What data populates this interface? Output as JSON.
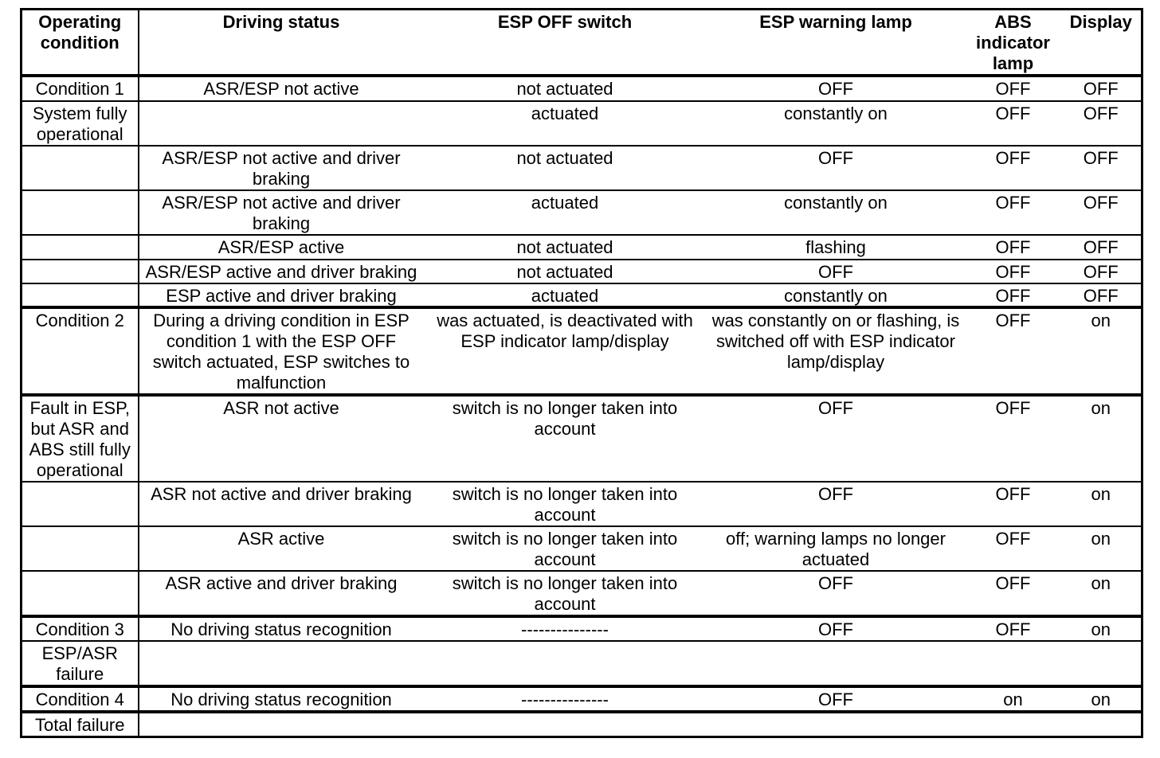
{
  "colors": {
    "border": "#000000",
    "background": "#ffffff",
    "text": "#000000"
  },
  "table": {
    "columns": {
      "operating_condition": "Operating condition",
      "driving_status": "Driving status",
      "esp_off_switch": "ESP OFF switch",
      "esp_warning_lamp": "ESP warning lamp",
      "abs_indicator_lamp": "ABS indicator lamp",
      "display": "Display"
    },
    "rows": [
      {
        "operating_condition": "Condition 1",
        "driving_status": "ASR/ESP not active",
        "esp_off_switch": "not actuated",
        "esp_warning_lamp": "OFF",
        "abs_indicator_lamp": "OFF",
        "display": "OFF"
      },
      {
        "operating_condition": "System fully operational",
        "driving_status": "",
        "esp_off_switch": "actuated",
        "esp_warning_lamp": "constantly on",
        "abs_indicator_lamp": "OFF",
        "display": "OFF"
      },
      {
        "operating_condition": "",
        "driving_status": "ASR/ESP not active and driver braking",
        "esp_off_switch": "not actuated",
        "esp_warning_lamp": "OFF",
        "abs_indicator_lamp": "OFF",
        "display": "OFF"
      },
      {
        "operating_condition": "",
        "driving_status": "ASR/ESP not active and driver braking",
        "esp_off_switch": "actuated",
        "esp_warning_lamp": "constantly on",
        "abs_indicator_lamp": "OFF",
        "display": "OFF"
      },
      {
        "operating_condition": "",
        "driving_status": "ASR/ESP active",
        "esp_off_switch": "not actuated",
        "esp_warning_lamp": "flashing",
        "abs_indicator_lamp": "OFF",
        "display": "OFF"
      },
      {
        "operating_condition": "",
        "driving_status": "ASR/ESP active and driver braking",
        "esp_off_switch": "not actuated",
        "esp_warning_lamp": "OFF",
        "abs_indicator_lamp": "OFF",
        "display": "OFF"
      },
      {
        "operating_condition": "",
        "driving_status": "ESP active and driver braking",
        "esp_off_switch": "actuated",
        "esp_warning_lamp": "constantly on",
        "abs_indicator_lamp": "OFF",
        "display": "OFF"
      },
      {
        "operating_condition": "Condition 2",
        "driving_status": "During a driving condition in ESP condition 1 with the ESP OFF switch actuated, ESP switches to malfunction",
        "esp_off_switch": "was actuated, is deactivated with ESP indicator lamp/display",
        "esp_warning_lamp": "was constantly on or flashing, is switched off with ESP indicator lamp/display",
        "abs_indicator_lamp": "OFF",
        "display": "on"
      },
      {
        "operating_condition": "Fault in ESP, but ASR and ABS still fully operational",
        "driving_status": "ASR not active",
        "esp_off_switch": "switch is no longer taken into account",
        "esp_warning_lamp": "OFF",
        "abs_indicator_lamp": "OFF",
        "display": "on"
      },
      {
        "operating_condition": "",
        "driving_status": "ASR not active and driver braking",
        "esp_off_switch": "switch is no longer taken into account",
        "esp_warning_lamp": "OFF",
        "abs_indicator_lamp": "OFF",
        "display": "on"
      },
      {
        "operating_condition": "",
        "driving_status": "ASR active",
        "esp_off_switch": "switch is no longer taken into account",
        "esp_warning_lamp": "off; warning lamps no longer actuated",
        "abs_indicator_lamp": "OFF",
        "display": "on"
      },
      {
        "operating_condition": "",
        "driving_status": "ASR active and driver braking",
        "esp_off_switch": "switch is no longer taken into account",
        "esp_warning_lamp": "OFF",
        "abs_indicator_lamp": "OFF",
        "display": "on"
      },
      {
        "operating_condition": "Condition 3",
        "driving_status": "No driving status recognition",
        "esp_off_switch": "---------------",
        "esp_warning_lamp": "OFF",
        "abs_indicator_lamp": "OFF",
        "display": "on"
      },
      {
        "operating_condition": "ESP/ASR failure",
        "driving_status": "",
        "esp_off_switch": "",
        "esp_warning_lamp": "",
        "abs_indicator_lamp": "",
        "display": ""
      },
      {
        "operating_condition": "Condition 4",
        "driving_status": "No driving status recognition",
        "esp_off_switch": "---------------",
        "esp_warning_lamp": "OFF",
        "abs_indicator_lamp": "on",
        "display": "on"
      },
      {
        "operating_condition": "Total failure",
        "driving_status": "",
        "esp_off_switch": "",
        "esp_warning_lamp": "",
        "abs_indicator_lamp": "",
        "display": ""
      }
    ]
  }
}
